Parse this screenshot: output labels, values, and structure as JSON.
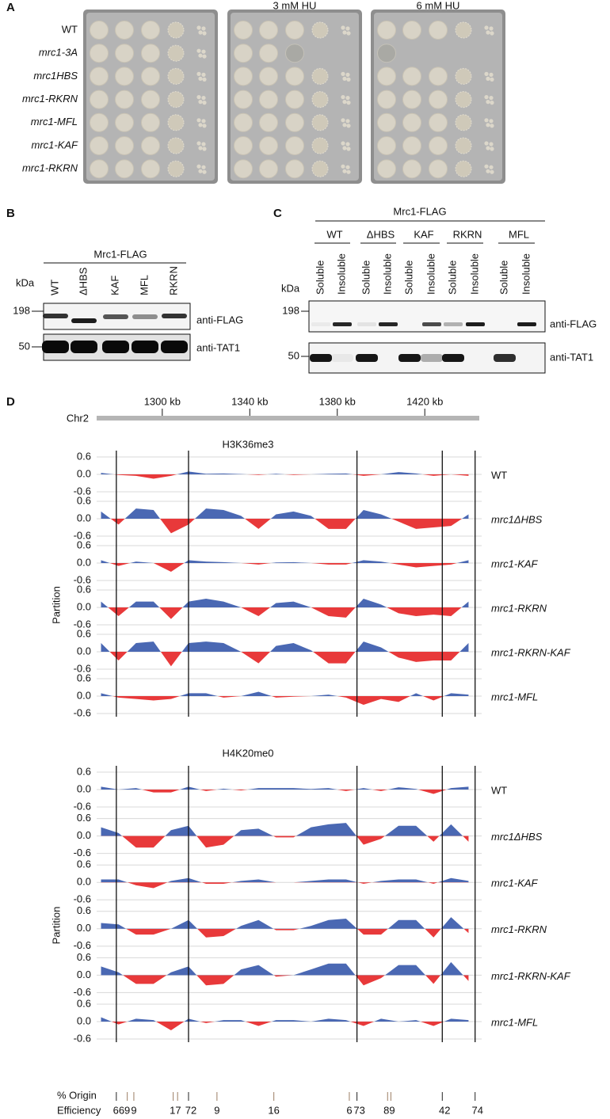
{
  "panel_a": {
    "label": "A",
    "plates": [
      null,
      "3 mM HU",
      "6 mM HU"
    ],
    "strains": [
      "WT",
      "mrc1-3A",
      "mrc1HBS",
      "mrc1-RKRN",
      "mrc1-MFL",
      "mrc1-KAF",
      "mrc1-RKRN"
    ]
  },
  "panel_b": {
    "label": "B",
    "group": "Mrc1-FLAG",
    "unit": "kDa",
    "markers": [
      198,
      50
    ],
    "lanes": [
      "WT",
      "ΔHBS",
      "KAF",
      "MFL",
      "RKRN"
    ],
    "blots": [
      "anti-FLAG",
      "anti-TAT1"
    ]
  },
  "panel_c": {
    "label": "C",
    "group": "Mrc1-FLAG",
    "unit": "kDa",
    "markers": [
      198,
      50
    ],
    "groups": [
      "WT",
      "ΔHBS",
      "KAF",
      "RKRN",
      "MFL"
    ],
    "fractions": [
      "Soluble",
      "Insoluble"
    ],
    "blots": [
      "anti-FLAG",
      "anti-TAT1"
    ]
  },
  "panel_d": {
    "label": "D",
    "chromosome": "Chr2",
    "xlim": [
      1270,
      1446
    ],
    "xticks": [
      {
        "value": 1300,
        "label": "1300 kb"
      },
      {
        "value": 1340,
        "label": "1340 kb"
      },
      {
        "value": 1380,
        "label": "1380 kb"
      },
      {
        "value": 1420,
        "label": "1420 kb"
      }
    ],
    "x": [
      1272,
      1280,
      1288,
      1296,
      1304,
      1312,
      1320,
      1328,
      1336,
      1344,
      1352,
      1360,
      1368,
      1376,
      1384,
      1392,
      1400,
      1408,
      1416,
      1424,
      1432,
      1440
    ],
    "origins": [
      1279,
      1312,
      1389,
      1428,
      1443
    ],
    "ylabel": "Partition",
    "ylim": [
      -0.6,
      0.6
    ],
    "yticks": [
      0.6,
      {
        "value": 0,
        "label": "0.0"
      },
      -0.6
    ],
    "colors": {
      "positive": "#4a68b3",
      "negative": "#e8393a"
    },
    "groups": [
      {
        "title": "H3K36me3",
        "tracks": [
          {
            "name": "WT",
            "values": [
              0.05,
              -0.02,
              -0.05,
              -0.15,
              -0.05,
              0.1,
              0.02,
              0.03,
              0.01,
              -0.02,
              0.02,
              -0.02,
              0.0,
              0.02,
              0.03,
              -0.05,
              0.0,
              0.08,
              0.03,
              -0.05,
              0.0,
              -0.05
            ]
          },
          {
            "name": "mrc1ΔHBS",
            "values": [
              0.25,
              -0.2,
              0.35,
              0.3,
              -0.5,
              -0.2,
              0.35,
              0.3,
              0.1,
              -0.35,
              0.15,
              0.25,
              0.1,
              -0.35,
              -0.35,
              0.3,
              0.15,
              -0.1,
              -0.35,
              -0.3,
              -0.25,
              0.15
            ]
          },
          {
            "name": "mrc1-KAF",
            "values": [
              0.1,
              -0.1,
              0.05,
              0.0,
              -0.3,
              0.1,
              0.05,
              0.03,
              0.0,
              -0.05,
              0.02,
              0.03,
              0.0,
              -0.05,
              -0.05,
              0.1,
              0.05,
              -0.05,
              -0.15,
              -0.1,
              -0.05,
              0.1
            ]
          },
          {
            "name": "mrc1-RKRN",
            "values": [
              0.2,
              -0.3,
              0.2,
              0.2,
              -0.4,
              0.2,
              0.3,
              0.2,
              0.0,
              -0.3,
              0.15,
              0.2,
              0.0,
              -0.3,
              -0.35,
              0.3,
              0.1,
              -0.2,
              -0.3,
              -0.25,
              -0.3,
              0.2
            ]
          },
          {
            "name": "mrc1-RKRN-KAF",
            "values": [
              0.3,
              -0.3,
              0.3,
              0.35,
              -0.5,
              0.3,
              0.35,
              0.3,
              0.0,
              -0.4,
              0.2,
              0.3,
              0.05,
              -0.4,
              -0.4,
              0.35,
              0.15,
              -0.2,
              -0.35,
              -0.3,
              -0.3,
              0.3
            ]
          },
          {
            "name": "mrc1-MFL",
            "values": [
              0.1,
              -0.05,
              -0.1,
              -0.15,
              -0.1,
              0.1,
              0.1,
              -0.05,
              0.0,
              0.15,
              -0.05,
              -0.02,
              0.0,
              0.05,
              -0.05,
              -0.3,
              -0.1,
              -0.2,
              0.1,
              -0.15,
              0.1,
              0.05
            ]
          }
        ]
      },
      {
        "title": "H4K20me0",
        "tracks": [
          {
            "name": "WT",
            "values": [
              0.1,
              0.0,
              0.05,
              -0.1,
              -0.1,
              0.1,
              -0.05,
              0.03,
              -0.03,
              0.05,
              0.05,
              0.05,
              0.02,
              0.05,
              -0.05,
              0.05,
              -0.05,
              0.08,
              0.02,
              -0.15,
              0.05,
              0.1
            ]
          },
          {
            "name": "mrc1ΔHBS",
            "values": [
              0.3,
              0.1,
              -0.4,
              -0.4,
              0.2,
              0.35,
              -0.4,
              -0.3,
              0.2,
              0.25,
              -0.05,
              -0.05,
              0.3,
              0.4,
              0.45,
              -0.3,
              -0.1,
              0.35,
              0.35,
              -0.2,
              0.4,
              -0.2
            ]
          },
          {
            "name": "mrc1-KAF",
            "values": [
              0.1,
              0.1,
              -0.1,
              -0.2,
              0.05,
              0.15,
              -0.05,
              -0.05,
              0.05,
              0.1,
              0.0,
              0.0,
              0.05,
              0.1,
              0.1,
              -0.05,
              0.05,
              0.1,
              0.1,
              -0.05,
              0.15,
              0.05
            ]
          },
          {
            "name": "mrc1-RKRN",
            "values": [
              0.2,
              0.15,
              -0.2,
              -0.2,
              0.0,
              0.3,
              -0.3,
              -0.25,
              0.1,
              0.3,
              -0.05,
              -0.05,
              0.1,
              0.3,
              0.35,
              -0.2,
              -0.2,
              0.3,
              0.3,
              -0.3,
              0.4,
              -0.15
            ]
          },
          {
            "name": "mrc1-RKRN-KAF",
            "values": [
              0.3,
              0.1,
              -0.3,
              -0.3,
              0.1,
              0.3,
              -0.35,
              -0.3,
              0.2,
              0.35,
              -0.05,
              0.0,
              0.2,
              0.4,
              0.4,
              -0.35,
              -0.1,
              0.35,
              0.35,
              -0.3,
              0.45,
              -0.2
            ]
          },
          {
            "name": "mrc1-MFL",
            "values": [
              0.15,
              -0.1,
              0.1,
              0.05,
              -0.3,
              0.1,
              -0.05,
              0.05,
              0.05,
              -0.15,
              0.05,
              0.05,
              0.0,
              0.1,
              0.05,
              -0.15,
              0.1,
              0.0,
              0.05,
              -0.15,
              0.1,
              0.05
            ]
          }
        ]
      }
    ],
    "efficiency": {
      "label": [
        "% Origin",
        "Efficiency"
      ],
      "items": [
        {
          "ticks": [
            1279
          ],
          "value": 66,
          "color": "#222222"
        },
        {
          "ticks": [
            1284
          ],
          "value": 9,
          "color": "#9b7d63"
        },
        {
          "ticks": [
            1287
          ],
          "value": 9,
          "color": "#9b7d63"
        },
        {
          "ticks": [
            1305,
            1307
          ],
          "value": 17,
          "color": "#9b7d63"
        },
        {
          "ticks": [
            1312
          ],
          "value": 72,
          "color": "#222222"
        },
        {
          "ticks": [
            1325
          ],
          "value": 9,
          "color": "#9b7d63"
        },
        {
          "ticks": [
            1351
          ],
          "value": 16,
          "color": "#9b7d63"
        },
        {
          "ticks": [
            1385.5
          ],
          "value": 6,
          "color": "#9b7d63"
        },
        {
          "ticks": [
            1389
          ],
          "value": 73,
          "color": "#222222"
        },
        {
          "ticks": [
            1403,
            1404.5
          ],
          "value": 89,
          "color": "#9b7d63"
        },
        {
          "ticks": [
            1428
          ],
          "value": 42,
          "color": "#222222"
        },
        {
          "ticks": [
            1443
          ],
          "value": 74,
          "color": "#222222"
        }
      ]
    }
  }
}
